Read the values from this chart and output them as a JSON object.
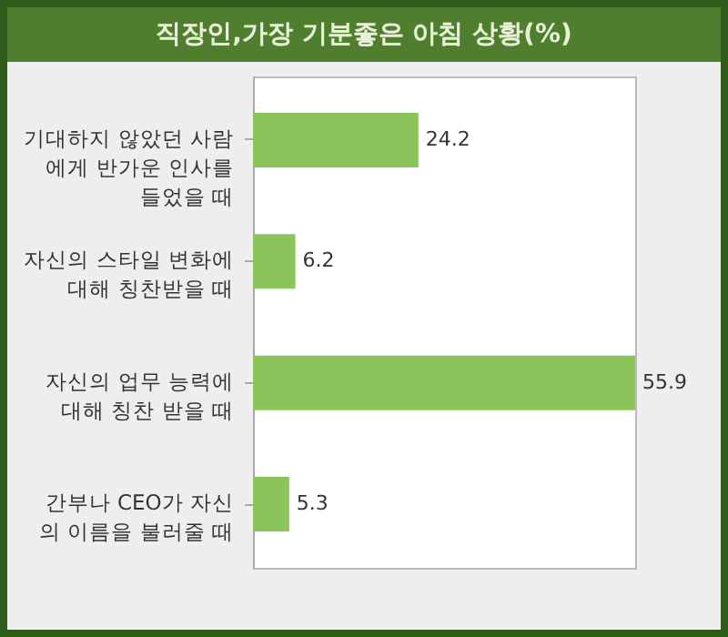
{
  "chart_data": {
    "type": "bar",
    "orientation": "horizontal",
    "title": "직장인,가장 기분좋은 아침 상황(%)",
    "categories": [
      "기대하지 않았던 사람에게 반가운 인사를 들었을 때",
      "자신의 스타일 변화에 대해 칭찬받을 때",
      "자신의 업무 능력에 대해 칭찬 받을 때",
      "간부나 CEO가 자신의 이름을 불러줄 때"
    ],
    "values": [
      24.2,
      6.2,
      55.9,
      5.3
    ],
    "color": "#8bc45a",
    "data_labels": true
  }
}
